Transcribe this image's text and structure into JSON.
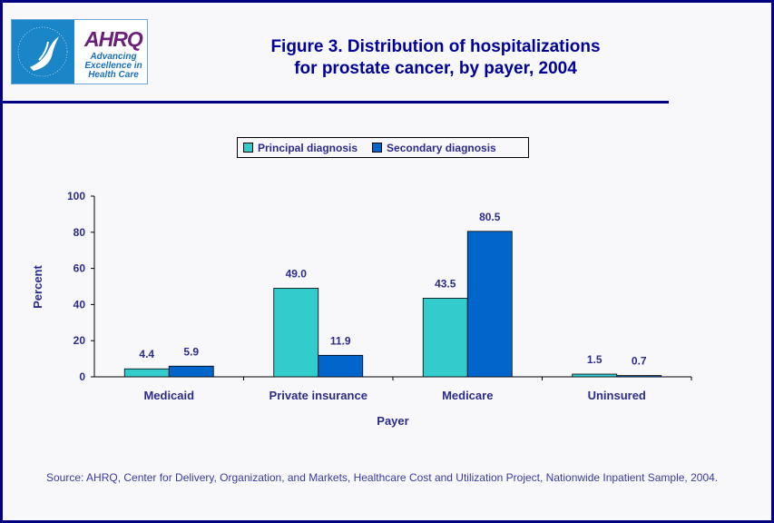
{
  "header": {
    "logo": {
      "agency": "Department of Health & Human Services USA",
      "name": "AHRQ",
      "tagline": "Advancing Excellence in Health Care"
    },
    "title_line1": "Figure 3. Distribution of hospitalizations",
    "title_line2": "for prostate cancer, by payer, 2004"
  },
  "chart_data": {
    "type": "bar",
    "title": "Figure 3. Distribution of hospitalizations for prostate cancer, by payer, 2004",
    "xlabel": "Payer",
    "ylabel": "Percent",
    "ylim": [
      0,
      100
    ],
    "yticks": [
      "0",
      "20",
      "40",
      "60",
      "80",
      "100"
    ],
    "categories": [
      "Medicaid",
      "Private insurance",
      "Medicare",
      "Uninsured"
    ],
    "series": [
      {
        "name": "Principal diagnosis",
        "color": "#33cccc",
        "values": [
          4.4,
          49.0,
          43.5,
          1.5
        ],
        "labels": [
          "4.4",
          "49.0",
          "43.5",
          "1.5"
        ]
      },
      {
        "name": "Secondary diagnosis",
        "color": "#0066cc",
        "values": [
          5.9,
          11.9,
          80.5,
          0.7
        ],
        "labels": [
          "5.9",
          "11.9",
          "80.5",
          "0.7"
        ]
      }
    ],
    "grid": false,
    "legend_position": "top-center"
  },
  "source": "Source: AHRQ, Center for Delivery, Organization, and Markets, Healthcare Cost and Utilization Project, Nationwide Inpatient Sample, 2004."
}
